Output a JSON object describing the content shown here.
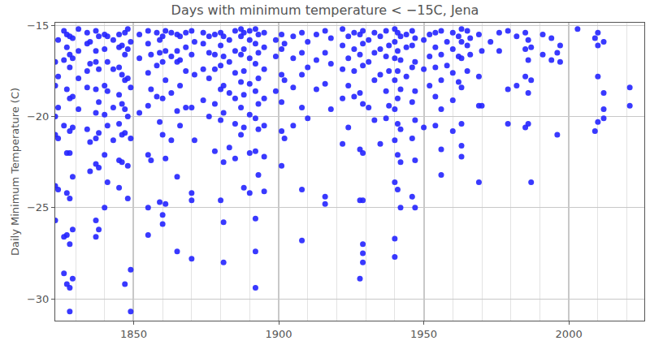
{
  "chart_data": {
    "type": "scatter",
    "title": "Days with minimum temperature < −15C, Jena",
    "y_label": "Daily Minimum Temperature (C)",
    "color": "#2323ff",
    "marker": "circle",
    "grid": true,
    "xlim": [
      1823,
      2026
    ],
    "ylim": [
      -31.2,
      -14.85
    ],
    "xticks": [
      1850,
      1900,
      1950,
      2000
    ],
    "yticks": [
      {
        "value": -15,
        "label": "−15"
      },
      {
        "value": -20,
        "label": "−20"
      },
      {
        "value": -25,
        "label": "−25"
      },
      {
        "value": -30,
        "label": "−30"
      }
    ],
    "x": [
      1823,
      1823,
      1823,
      1823,
      1823,
      1823,
      1824,
      1824,
      1824,
      1824,
      1824,
      1826,
      1826,
      1826,
      1826,
      1826,
      1827,
      1827,
      1827,
      1827,
      1827,
      1827,
      1827,
      1828,
      1828,
      1828,
      1828,
      1828,
      1828,
      1828,
      1828,
      1828,
      1828,
      1829,
      1829,
      1829,
      1829,
      1829,
      1829,
      1829,
      1831,
      1831,
      1831,
      1831,
      1834,
      1834,
      1834,
      1834,
      1834,
      1835,
      1835,
      1835,
      1835,
      1837,
      1837,
      1837,
      1837,
      1837,
      1837,
      1837,
      1837,
      1837,
      1838,
      1838,
      1838,
      1838,
      1838,
      1838,
      1840,
      1840,
      1840,
      1840,
      1840,
      1840,
      1841,
      1841,
      1841,
      1841,
      1841,
      1843,
      1843,
      1843,
      1843,
      1845,
      1845,
      1845,
      1845,
      1845,
      1845,
      1845,
      1846,
      1846,
      1846,
      1846,
      1846,
      1847,
      1847,
      1847,
      1847,
      1847,
      1847,
      1848,
      1848,
      1848,
      1848,
      1848,
      1848,
      1849,
      1849,
      1849,
      1849,
      1849,
      1852,
      1852,
      1852,
      1855,
      1855,
      1855,
      1855,
      1855,
      1855,
      1855,
      1856,
      1856,
      1856,
      1858,
      1858,
      1858,
      1859,
      1859,
      1859,
      1859,
      1860,
      1860,
      1860,
      1860,
      1860,
      1860,
      1861,
      1861,
      1861,
      1861,
      1861,
      1863,
      1863,
      1863,
      1863,
      1865,
      1865,
      1865,
      1865,
      1865,
      1865,
      1866,
      1866,
      1866,
      1866,
      1868,
      1868,
      1868,
      1868,
      1870,
      1870,
      1870,
      1870,
      1870,
      1870,
      1871,
      1871,
      1871,
      1874,
      1874,
      1874,
      1874,
      1876,
      1876,
      1876,
      1876,
      1878,
      1878,
      1878,
      1878,
      1878,
      1880,
      1880,
      1880,
      1880,
      1880,
      1880,
      1881,
      1881,
      1881,
      1881,
      1881,
      1881,
      1881,
      1883,
      1883,
      1883,
      1883,
      1885,
      1885,
      1885,
      1885,
      1885,
      1885,
      1887,
      1887,
      1887,
      1887,
      1887,
      1887,
      1888,
      1888,
      1888,
      1888,
      1888,
      1888,
      1890,
      1890,
      1890,
      1890,
      1890,
      1890,
      1890,
      1892,
      1892,
      1892,
      1892,
      1892,
      1892,
      1892,
      1892,
      1892,
      1893,
      1893,
      1893,
      1893,
      1893,
      1893,
      1895,
      1895,
      1895,
      1895,
      1895,
      1895,
      1895,
      1899,
      1899,
      1899,
      1901,
      1901,
      1901,
      1901,
      1901,
      1901,
      1902,
      1902,
      1902,
      1905,
      1905,
      1905,
      1905,
      1908,
      1908,
      1908,
      1908,
      1908,
      1908,
      1910,
      1910,
      1910,
      1913,
      1913,
      1913,
      1916,
      1916,
      1916,
      1916,
      1916,
      1918,
      1918,
      1918,
      1922,
      1922,
      1922,
      1922,
      1922,
      1924,
      1924,
      1924,
      1924,
      1926,
      1926,
      1926,
      1926,
      1928,
      1928,
      1928,
      1928,
      1928,
      1928,
      1929,
      1929,
      1929,
      1929,
      1929,
      1929,
      1929,
      1929,
      1929,
      1931,
      1931,
      1931,
      1933,
      1933,
      1933,
      1933,
      1935,
      1935,
      1935,
      1935,
      1937,
      1937,
      1937,
      1937,
      1938,
      1938,
      1938,
      1940,
      1940,
      1940,
      1940,
      1940,
      1940,
      1940,
      1940,
      1940,
      1941,
      1941,
      1941,
      1941,
      1941,
      1941,
      1941,
      1942,
      1942,
      1942,
      1942,
      1942,
      1942,
      1944,
      1944,
      1944,
      1946,
      1946,
      1946,
      1946,
      1946,
      1946,
      1947,
      1947,
      1947,
      1947,
      1947,
      1947,
      1950,
      1950,
      1950,
      1952,
      1952,
      1952,
      1954,
      1954,
      1954,
      1954,
      1954,
      1956,
      1956,
      1956,
      1956,
      1956,
      1956,
      1958,
      1958,
      1960,
      1960,
      1960,
      1960,
      1960,
      1962,
      1962,
      1962,
      1963,
      1963,
      1963,
      1963,
      1963,
      1963,
      1963,
      1965,
      1965,
      1965,
      1966,
      1966,
      1969,
      1969,
      1969,
      1969,
      1970,
      1970,
      1973,
      1976,
      1976,
      1979,
      1979,
      1979,
      1982,
      1982,
      1985,
      1985,
      1985,
      1985,
      1986,
      1986,
      1986,
      1986,
      1987,
      1987,
      1987,
      1991,
      1991,
      1994,
      1994,
      1996,
      1996,
      1997,
      1997,
      2003,
      2009,
      2009,
      2010,
      2010,
      2010,
      2010,
      2012,
      2012,
      2012,
      2012,
      2021,
      2021
    ],
    "values": [
      -17.0,
      -18.3,
      -20.0,
      -21.0,
      -23.8,
      -25.7,
      -15.8,
      -17.8,
      -19.5,
      -21.2,
      -24.0,
      -15.3,
      -16.9,
      -20.5,
      -26.6,
      -28.6,
      -15.5,
      -16.2,
      -18.5,
      -22.0,
      -24.2,
      -26.5,
      -29.2,
      -15.6,
      -16.6,
      -17.3,
      -19.0,
      -20.8,
      -22.0,
      -24.5,
      -27.0,
      -29.4,
      -30.7,
      -15.7,
      -16.8,
      -18.9,
      -20.6,
      -23.3,
      -26.2,
      -28.9,
      -15.2,
      -16.4,
      -17.9,
      -19.6,
      -15.4,
      -16.0,
      -17.5,
      -18.4,
      -20.7,
      -15.9,
      -17.1,
      -21.4,
      -23.0,
      -15.3,
      -16.4,
      -17.0,
      -18.5,
      -19.8,
      -21.2,
      -22.6,
      -25.7,
      -26.6,
      -15.6,
      -17.4,
      -19.2,
      -20.9,
      -22.8,
      -26.2,
      -15.5,
      -16.3,
      -18.3,
      -19.9,
      -22.1,
      -25.0,
      -15.6,
      -17.0,
      -18.6,
      -20.5,
      -23.6,
      -15.8,
      -17.4,
      -19.5,
      -21.3,
      -15.5,
      -16.2,
      -17.3,
      -18.8,
      -20.4,
      -22.4,
      -23.9,
      -16.1,
      -17.7,
      -19.3,
      -21.0,
      -22.5,
      -15.4,
      -16.6,
      -18.0,
      -19.6,
      -20.9,
      -29.2,
      -15.2,
      -16.3,
      -17.9,
      -20.0,
      -22.7,
      -24.5,
      -15.9,
      -18.4,
      -21.2,
      -28.4,
      -30.7,
      -15.5,
      -16.8,
      -19.8,
      -15.3,
      -16.0,
      -17.6,
      -19.4,
      -22.1,
      -25.0,
      -26.5,
      -16.6,
      -18.5,
      -22.4,
      -15.4,
      -17.2,
      -18.9,
      -15.8,
      -16.5,
      -20.3,
      -24.7,
      -15.6,
      -17.0,
      -19.0,
      -21.0,
      -25.4,
      -25.9,
      -15.3,
      -16.4,
      -18.0,
      -22.3,
      -24.8,
      -15.4,
      -16.7,
      -18.7,
      -21.3,
      -15.5,
      -16.4,
      -17.0,
      -19.7,
      -23.3,
      -27.4,
      -15.6,
      -16.9,
      -18.3,
      -20.5,
      -15.4,
      -16.2,
      -17.5,
      -19.5,
      -15.3,
      -16.6,
      -19.5,
      -24.2,
      -24.6,
      -27.8,
      -15.9,
      -17.7,
      -21.3,
      -15.4,
      -16.0,
      -17.4,
      -19.1,
      -15.6,
      -16.5,
      -17.9,
      -20.0,
      -15.5,
      -16.6,
      -17.4,
      -19.3,
      -21.9,
      -15.4,
      -16.1,
      -17.2,
      -18.5,
      -20.2,
      -24.6,
      -15.6,
      -16.7,
      -18.3,
      -19.8,
      -22.5,
      -25.8,
      -28.0,
      -15.8,
      -17.0,
      -18.7,
      -21.7,
      -15.3,
      -16.4,
      -17.6,
      -19.0,
      -20.4,
      -22.3,
      -15.2,
      -15.6,
      -16.6,
      -18.1,
      -19.5,
      -21.0,
      -15.4,
      -16.3,
      -17.5,
      -18.8,
      -20.6,
      -23.9,
      -15.3,
      -15.8,
      -16.8,
      -18.2,
      -19.9,
      -22.0,
      -24.2,
      -15.2,
      -16.0,
      -17.1,
      -18.6,
      -20.1,
      -21.9,
      -25.6,
      -27.4,
      -29.4,
      -15.5,
      -16.5,
      -17.9,
      -19.3,
      -20.7,
      -23.2,
      -15.4,
      -16.2,
      -17.4,
      -19.0,
      -20.5,
      -22.2,
      -24.1,
      -15.8,
      -16.7,
      -18.6,
      -15.5,
      -16.3,
      -17.7,
      -19.2,
      -20.8,
      -22.7,
      -16.0,
      -18.0,
      -21.2,
      -15.6,
      -16.8,
      -18.4,
      -20.5,
      -15.4,
      -16.5,
      -17.7,
      -19.5,
      -24.0,
      -26.8,
      -15.9,
      -17.3,
      -20.1,
      -15.5,
      -16.9,
      -18.5,
      -15.3,
      -16.5,
      -18.2,
      -24.4,
      -24.8,
      -15.7,
      -17.1,
      -19.6,
      -15.2,
      -16.1,
      -17.4,
      -19.0,
      -21.5,
      -15.6,
      -16.8,
      -18.3,
      -20.6,
      -15.4,
      -16.3,
      -17.5,
      -18.9,
      -15.5,
      -16.6,
      -18.7,
      -21.8,
      -24.6,
      -28.9,
      -15.3,
      -16.0,
      -17.2,
      -19.3,
      -22.0,
      -24.6,
      -27.0,
      -27.5,
      -28.0,
      -15.8,
      -17.0,
      -19.5,
      -15.4,
      -16.5,
      -18.0,
      -20.2,
      -15.6,
      -16.3,
      -17.7,
      -21.5,
      -15.3,
      -16.7,
      -18.6,
      -20.1,
      -16.1,
      -17.5,
      -19.4,
      -15.2,
      -15.9,
      -16.8,
      -18.0,
      -19.6,
      -21.3,
      -23.6,
      -26.7,
      -27.7,
      -15.4,
      -16.4,
      -17.5,
      -19.0,
      -20.4,
      -22.1,
      -24.0,
      -15.6,
      -16.9,
      -18.5,
      -20.7,
      -22.5,
      -25.0,
      -15.5,
      -16.2,
      -17.8,
      -15.3,
      -16.1,
      -17.3,
      -19.2,
      -21.2,
      -24.4,
      -15.7,
      -17.0,
      -18.6,
      -20.2,
      -22.4,
      -25.0,
      -15.8,
      -17.4,
      -20.6,
      -15.5,
      -16.7,
      -18.3,
      -15.4,
      -16.2,
      -17.3,
      -18.9,
      -20.5,
      -15.3,
      -16.6,
      -18.0,
      -19.6,
      -21.8,
      -23.2,
      -15.9,
      -17.2,
      -15.4,
      -16.3,
      -17.6,
      -19.1,
      -20.8,
      -15.6,
      -16.7,
      -18.1,
      -15.2,
      -15.9,
      -16.8,
      -18.4,
      -20.4,
      -21.6,
      -22.2,
      -15.3,
      -16.1,
      -17.5,
      -15.7,
      -16.6,
      -15.5,
      -17.8,
      -19.4,
      -23.6,
      -16.4,
      -19.4,
      -15.9,
      -15.4,
      -16.4,
      -15.3,
      -18.5,
      -20.4,
      -15.6,
      -18.3,
      -15.4,
      -16.3,
      -17.8,
      -20.6,
      -15.8,
      -16.9,
      -18.7,
      -20.4,
      -16.2,
      -18.0,
      -23.6,
      -15.5,
      -16.6,
      -15.7,
      -16.9,
      -16.5,
      -21.0,
      -16.1,
      -17.0,
      -15.2,
      -15.7,
      -20.8,
      -15.4,
      -16.1,
      -17.8,
      -20.3,
      -15.9,
      -18.7,
      -19.6,
      -20.1,
      -18.4,
      -19.4
    ]
  }
}
